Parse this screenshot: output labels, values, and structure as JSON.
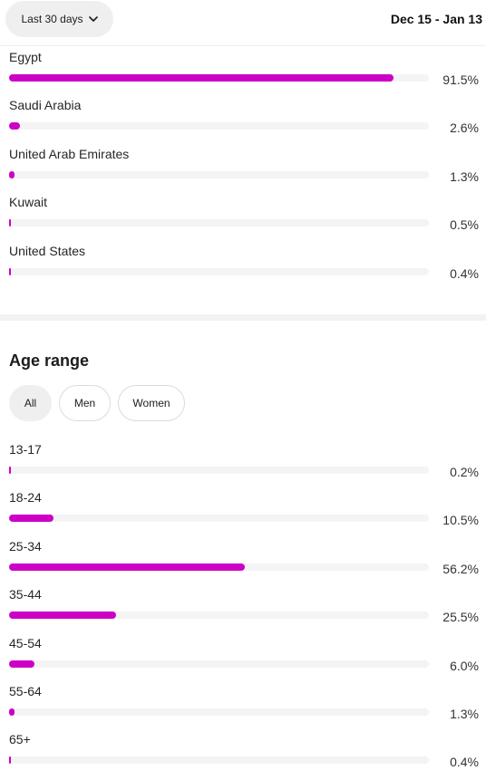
{
  "header": {
    "range_label": "Last 30 days",
    "date_range": "Dec 15 - Jan 13"
  },
  "locations": {
    "items": [
      {
        "label": "Egypt",
        "percent_text": "91.5%",
        "value": 91.5
      },
      {
        "label": "Saudi Arabia",
        "percent_text": "2.6%",
        "value": 2.6
      },
      {
        "label": "United Arab Emirates",
        "percent_text": "1.3%",
        "value": 1.3
      },
      {
        "label": "Kuwait",
        "percent_text": "0.5%",
        "value": 0.5
      },
      {
        "label": "United States",
        "percent_text": "0.4%",
        "value": 0.4
      }
    ]
  },
  "age": {
    "title": "Age range",
    "filters": [
      {
        "label": "All",
        "active": true
      },
      {
        "label": "Men",
        "active": false
      },
      {
        "label": "Women",
        "active": false
      }
    ],
    "items": [
      {
        "label": "13-17",
        "percent_text": "0.2%",
        "value": 0.2
      },
      {
        "label": "18-24",
        "percent_text": "10.5%",
        "value": 10.5
      },
      {
        "label": "25-34",
        "percent_text": "56.2%",
        "value": 56.2
      },
      {
        "label": "35-44",
        "percent_text": "25.5%",
        "value": 25.5
      },
      {
        "label": "45-54",
        "percent_text": "6.0%",
        "value": 6.0
      },
      {
        "label": "55-64",
        "percent_text": "1.3%",
        "value": 1.3
      },
      {
        "label": "65+",
        "percent_text": "0.4%",
        "value": 0.4
      }
    ]
  },
  "colors": {
    "bar_fill": "#cc00c6",
    "bar_track": "#f4f4f4"
  }
}
